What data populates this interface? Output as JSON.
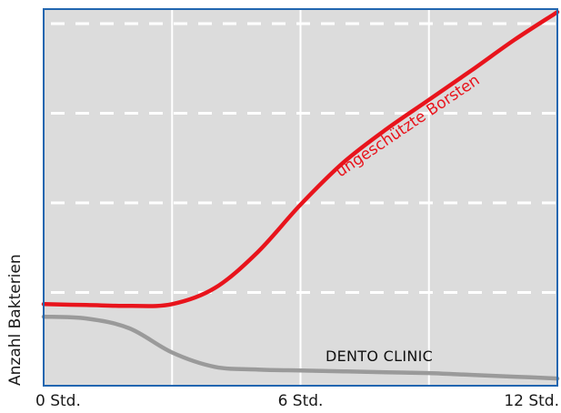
{
  "chart_data": {
    "type": "line",
    "title": "",
    "xlabel": "",
    "ylabel": "Anzahl Bakterien",
    "xlim": [
      0,
      12
    ],
    "ylim": [
      0,
      4
    ],
    "x_tick_labels": [
      "0 Std.",
      "6 Std.",
      "12 Std."
    ],
    "x_ticks": [
      0,
      6,
      12
    ],
    "grid": {
      "vertical_lines_at": [
        3,
        6,
        9
      ],
      "horizontal_dashed_at": [
        1,
        2,
        3,
        4
      ]
    },
    "legend": "none",
    "series": [
      {
        "name": "ungeschützte Borsten",
        "color": "#e8141c",
        "points": [
          {
            "x": 0,
            "y": 0.87
          },
          {
            "x": 1,
            "y": 0.86
          },
          {
            "x": 2,
            "y": 0.85
          },
          {
            "x": 3,
            "y": 0.87
          },
          {
            "x": 4,
            "y": 1.05
          },
          {
            "x": 5,
            "y": 1.45
          },
          {
            "x": 6,
            "y": 1.98
          },
          {
            "x": 7,
            "y": 2.45
          },
          {
            "x": 8,
            "y": 2.82
          },
          {
            "x": 9,
            "y": 3.15
          },
          {
            "x": 10,
            "y": 3.48
          },
          {
            "x": 11,
            "y": 3.82
          },
          {
            "x": 12,
            "y": 4.13
          }
        ]
      },
      {
        "name": "DENTO CLINIC",
        "color": "#9a9a9a",
        "points": [
          {
            "x": 0,
            "y": 0.73
          },
          {
            "x": 1,
            "y": 0.71
          },
          {
            "x": 2,
            "y": 0.6
          },
          {
            "x": 3,
            "y": 0.33
          },
          {
            "x": 4,
            "y": 0.17
          },
          {
            "x": 5,
            "y": 0.14
          },
          {
            "x": 6,
            "y": 0.13
          },
          {
            "x": 7,
            "y": 0.12
          },
          {
            "x": 8,
            "y": 0.11
          },
          {
            "x": 9,
            "y": 0.1
          },
          {
            "x": 10,
            "y": 0.08
          },
          {
            "x": 11,
            "y": 0.06
          },
          {
            "x": 12,
            "y": 0.04
          }
        ]
      }
    ]
  },
  "colors": {
    "plot_background": "#dcdcdc",
    "plot_border": "#2266b0",
    "grid": "#ffffff",
    "red_series": "#e8141c",
    "grey_series": "#9a9a9a"
  }
}
